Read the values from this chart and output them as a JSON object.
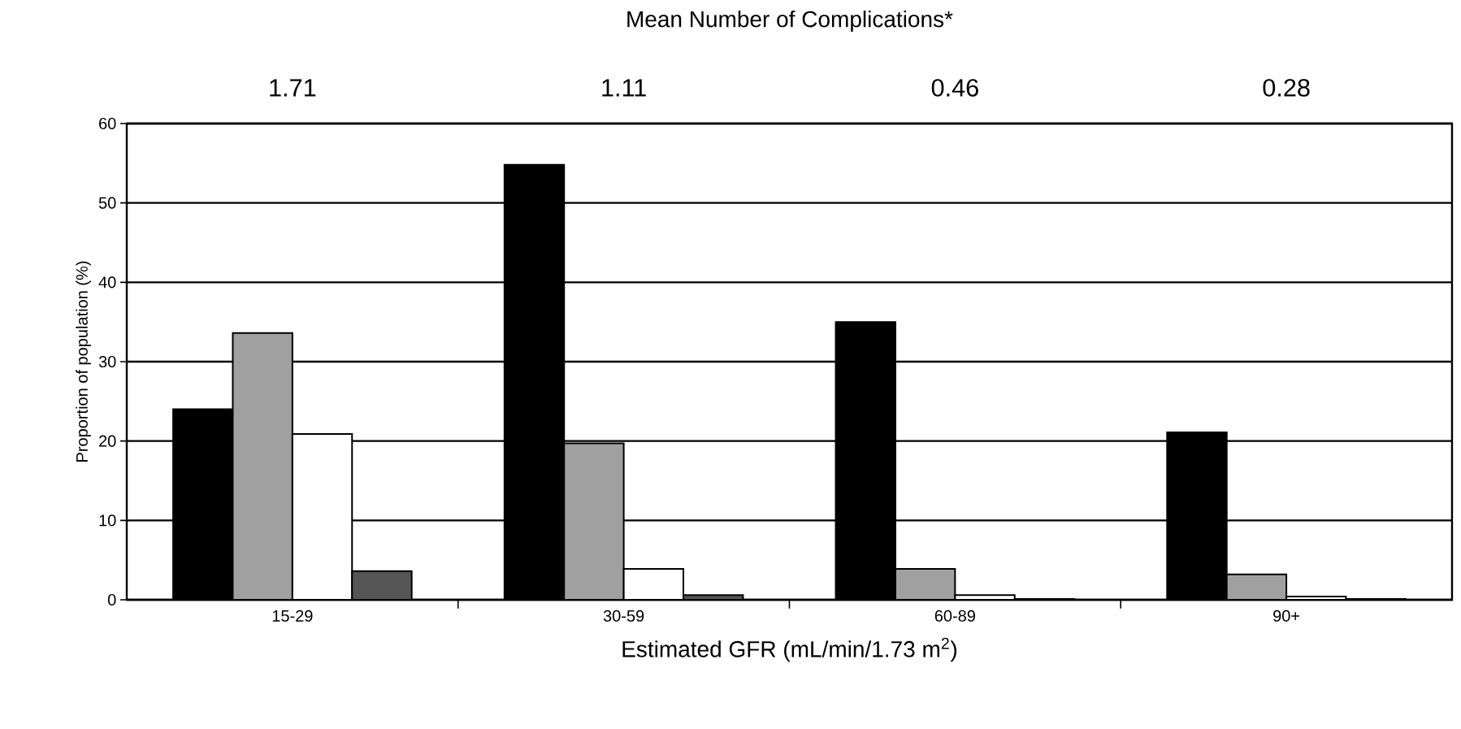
{
  "chart_data": {
    "type": "bar",
    "title": "Mean Number of Complications*",
    "xlabel": "Estimated GFR (mL/min/1.73 m$^{2}$)",
    "ylabel": "Proportion of population (%)",
    "categories": [
      "15-29",
      "30-59",
      "60-89",
      "90+"
    ],
    "series": [
      {
        "color": "#000000",
        "values": [
          24.0,
          54.8,
          35.0,
          21.1
        ]
      },
      {
        "color": "#a0a0a0",
        "values": [
          33.6,
          19.7,
          3.9,
          3.2
        ]
      },
      {
        "color": "#ffffff",
        "values": [
          20.9,
          3.9,
          0.6,
          0.4
        ]
      },
      {
        "color": "#555555",
        "values": [
          3.6,
          0.6,
          0.1,
          0.1
        ]
      }
    ],
    "annotations": [
      "1.71",
      "1.11",
      "0.46",
      "0.28"
    ],
    "ylim": [
      0,
      60
    ],
    "yticks": [
      0,
      10,
      20,
      30,
      40,
      50,
      60
    ],
    "grid": "y",
    "legend": false
  }
}
